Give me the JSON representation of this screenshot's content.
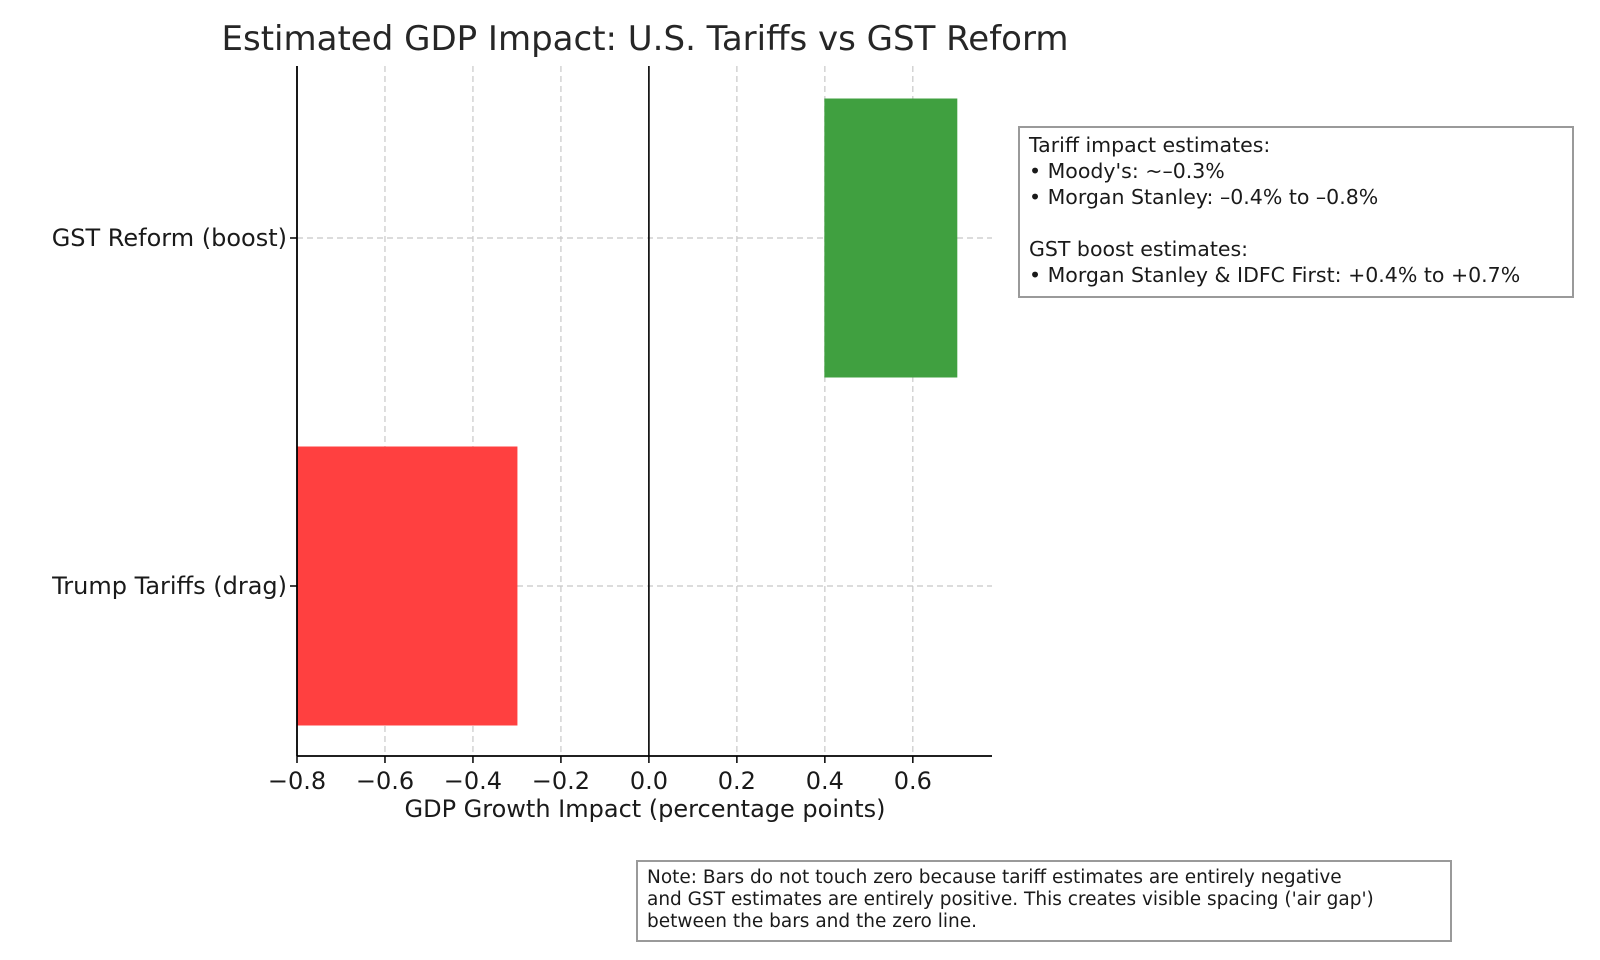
{
  "chart_data": {
    "type": "bar",
    "orientation": "horizontal",
    "title": "Estimated GDP Impact: U.S. Tariffs vs GST Reform",
    "xlabel": "GDP Growth Impact (percentage points)",
    "ylabel": "",
    "xlim": [
      -0.8,
      0.78
    ],
    "x_ticks": [
      -0.8,
      -0.6,
      -0.4,
      -0.2,
      0.0,
      0.2,
      0.4,
      0.6
    ],
    "x_tick_labels": [
      "−0.8",
      "−0.6",
      "−0.4",
      "−0.2",
      "0.0",
      "0.2",
      "0.4",
      "0.6"
    ],
    "grid": true,
    "categories": [
      "Trump Tariffs (drag)",
      "GST Reform (boost)"
    ],
    "bars": [
      {
        "category": "Trump Tariffs (drag)",
        "start": -0.8,
        "end": -0.3,
        "color": "#ff4040"
      },
      {
        "category": "GST Reform (boost)",
        "start": 0.4,
        "end": 0.7,
        "color": "#40a040"
      }
    ],
    "zero_line": 0.0
  },
  "estimates_box": {
    "lines": [
      "Tariff impact estimates:",
      "• Moody's: ~–0.3%",
      "• Morgan Stanley: –0.4% to –0.8%",
      "",
      "GST boost estimates:",
      "• Morgan Stanley & IDFC First: +0.4% to +0.7%"
    ]
  },
  "note_box": {
    "lines": [
      "Note: Bars do not touch zero because tariff estimates are entirely negative",
      "and GST estimates are entirely positive. This creates visible spacing ('air gap')",
      "between the bars and the zero line."
    ]
  }
}
